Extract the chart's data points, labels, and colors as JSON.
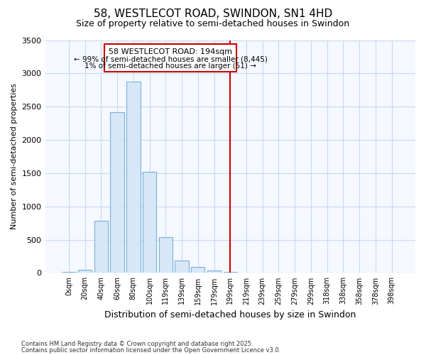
{
  "title1": "58, WESTLECOT ROAD, SWINDON, SN1 4HD",
  "title2": "Size of property relative to semi-detached houses in Swindon",
  "xlabel": "Distribution of semi-detached houses by size in Swindon",
  "ylabel": "Number of semi-detached properties",
  "bar_labels": [
    "0sqm",
    "20sqm",
    "40sqm",
    "60sqm",
    "80sqm",
    "100sqm",
    "119sqm",
    "139sqm",
    "159sqm",
    "179sqm",
    "199sqm",
    "219sqm",
    "239sqm",
    "259sqm",
    "279sqm",
    "299sqm",
    "318sqm",
    "338sqm",
    "358sqm",
    "378sqm",
    "398sqm"
  ],
  "bar_values": [
    20,
    50,
    780,
    2420,
    2880,
    1520,
    540,
    185,
    90,
    40,
    20,
    8,
    4,
    2,
    1,
    1,
    0,
    0,
    0,
    0,
    0
  ],
  "bar_color": "#d6e8f7",
  "bar_edge_color": "#7ab0d8",
  "ylim": [
    0,
    3500
  ],
  "yticks": [
    0,
    500,
    1000,
    1500,
    2000,
    2500,
    3000,
    3500
  ],
  "vline_color": "#cc0000",
  "annotation_title": "58 WESTLECOT ROAD: 194sqm",
  "annotation_line1": "← 99% of semi-detached houses are smaller (8,445)",
  "annotation_line2": "1% of semi-detached houses are larger (51) →",
  "annotation_box_color": "#cc0000",
  "background_color": "#ffffff",
  "plot_bg_color": "#f5f8ff",
  "grid_color": "#c8d8f0",
  "footnote1": "Contains HM Land Registry data © Crown copyright and database right 2025.",
  "footnote2": "Contains public sector information licensed under the Open Government Licence v3.0."
}
